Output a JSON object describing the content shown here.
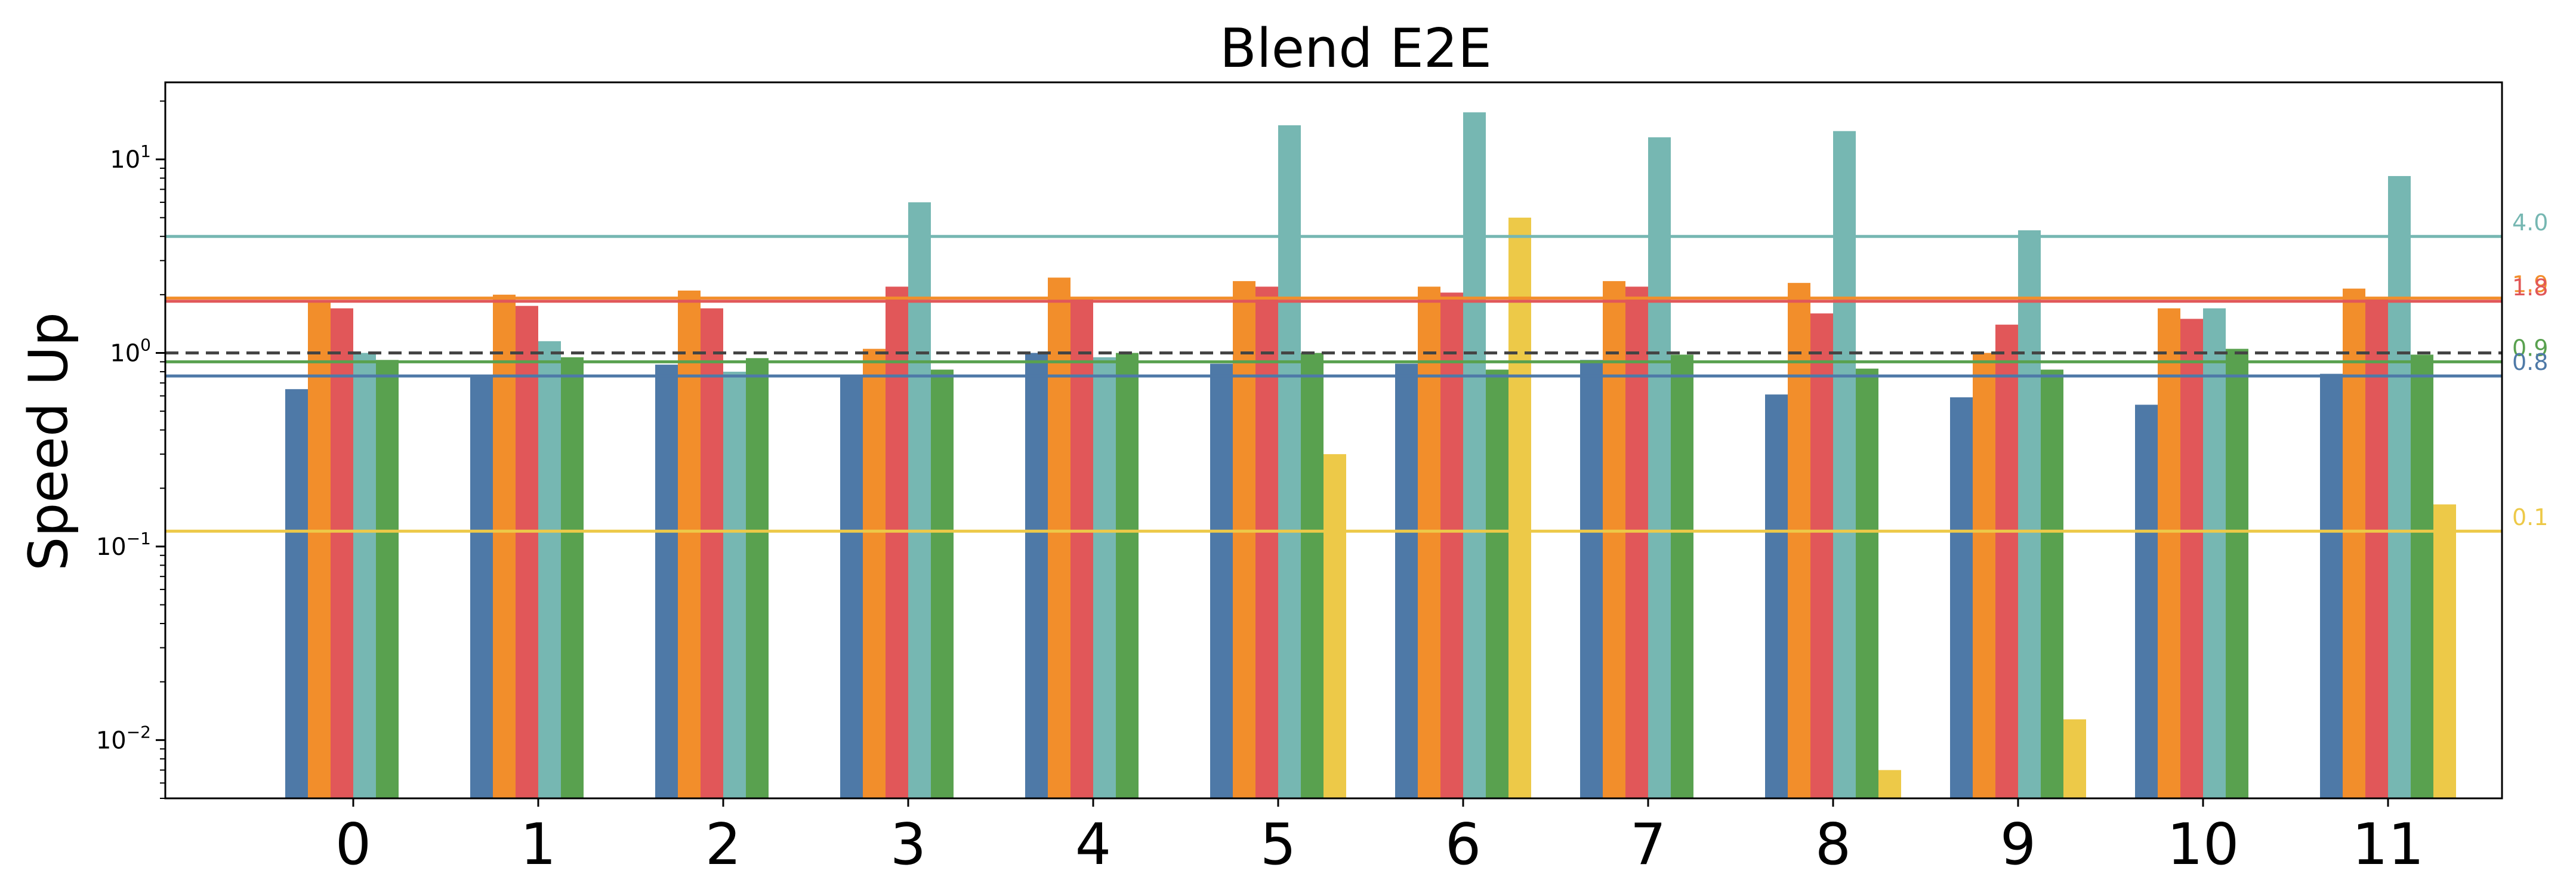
{
  "chart_data": {
    "type": "bar",
    "title": "Blend E2E",
    "xlabel": "",
    "ylabel": "Speed Up",
    "yscale": "log",
    "ylim": [
      0.005,
      25
    ],
    "yticks": [
      {
        "value": 0.01,
        "base": "10",
        "exp": "−2"
      },
      {
        "value": 0.1,
        "base": "10",
        "exp": "−1"
      },
      {
        "value": 1,
        "base": "10",
        "exp": "0"
      },
      {
        "value": 10,
        "base": "10",
        "exp": "1"
      }
    ],
    "categories": [
      "0",
      "1",
      "2",
      "3",
      "4",
      "5",
      "6",
      "7",
      "8",
      "9",
      "10",
      "11"
    ],
    "series": [
      {
        "color": "#4e79a7",
        "values": [
          0.65,
          0.75,
          0.87,
          0.76,
          1.0,
          0.88,
          0.88,
          0.92,
          0.61,
          0.59,
          0.54,
          0.78
        ]
      },
      {
        "color": "#f28e2b",
        "values": [
          1.85,
          2.0,
          2.1,
          1.05,
          2.45,
          2.35,
          2.2,
          2.35,
          2.3,
          1.0,
          1.7,
          2.15
        ]
      },
      {
        "color": "#e15759",
        "values": [
          1.7,
          1.75,
          1.7,
          2.2,
          1.9,
          2.2,
          2.05,
          2.2,
          1.6,
          1.4,
          1.5,
          1.9
        ]
      },
      {
        "color": "#76b7b2",
        "values": [
          1.0,
          1.15,
          0.8,
          6.0,
          0.95,
          15.0,
          17.5,
          13.0,
          14.0,
          4.3,
          1.7,
          8.2
        ]
      },
      {
        "color": "#59a14f",
        "values": [
          0.92,
          0.95,
          0.94,
          0.82,
          1.0,
          1.0,
          0.82,
          0.98,
          0.83,
          0.82,
          1.05,
          0.98
        ]
      },
      {
        "color": "#edc948",
        "values": [
          null,
          null,
          null,
          null,
          null,
          0.3,
          5.0,
          null,
          0.007,
          0.0128,
          null,
          0.165
        ]
      }
    ],
    "reference_lines": [
      {
        "value": 4.0,
        "label": "4.0",
        "color": "#76b7b2",
        "style": "solid"
      },
      {
        "value": 1.92,
        "label": "1.9",
        "color": "#f28e2b",
        "style": "solid"
      },
      {
        "value": 1.85,
        "label": "1.8",
        "color": "#e15759",
        "style": "solid"
      },
      {
        "value": 1.0,
        "label": "",
        "color": "#444444",
        "style": "dashed"
      },
      {
        "value": 0.9,
        "label": "0.9",
        "color": "#59a14f",
        "style": "solid"
      },
      {
        "value": 0.76,
        "label": "0.8",
        "color": "#4e79a7",
        "style": "solid"
      },
      {
        "value": 0.12,
        "label": "0.1",
        "color": "#edc948",
        "style": "solid"
      }
    ],
    "grid": false,
    "legend": "none"
  }
}
